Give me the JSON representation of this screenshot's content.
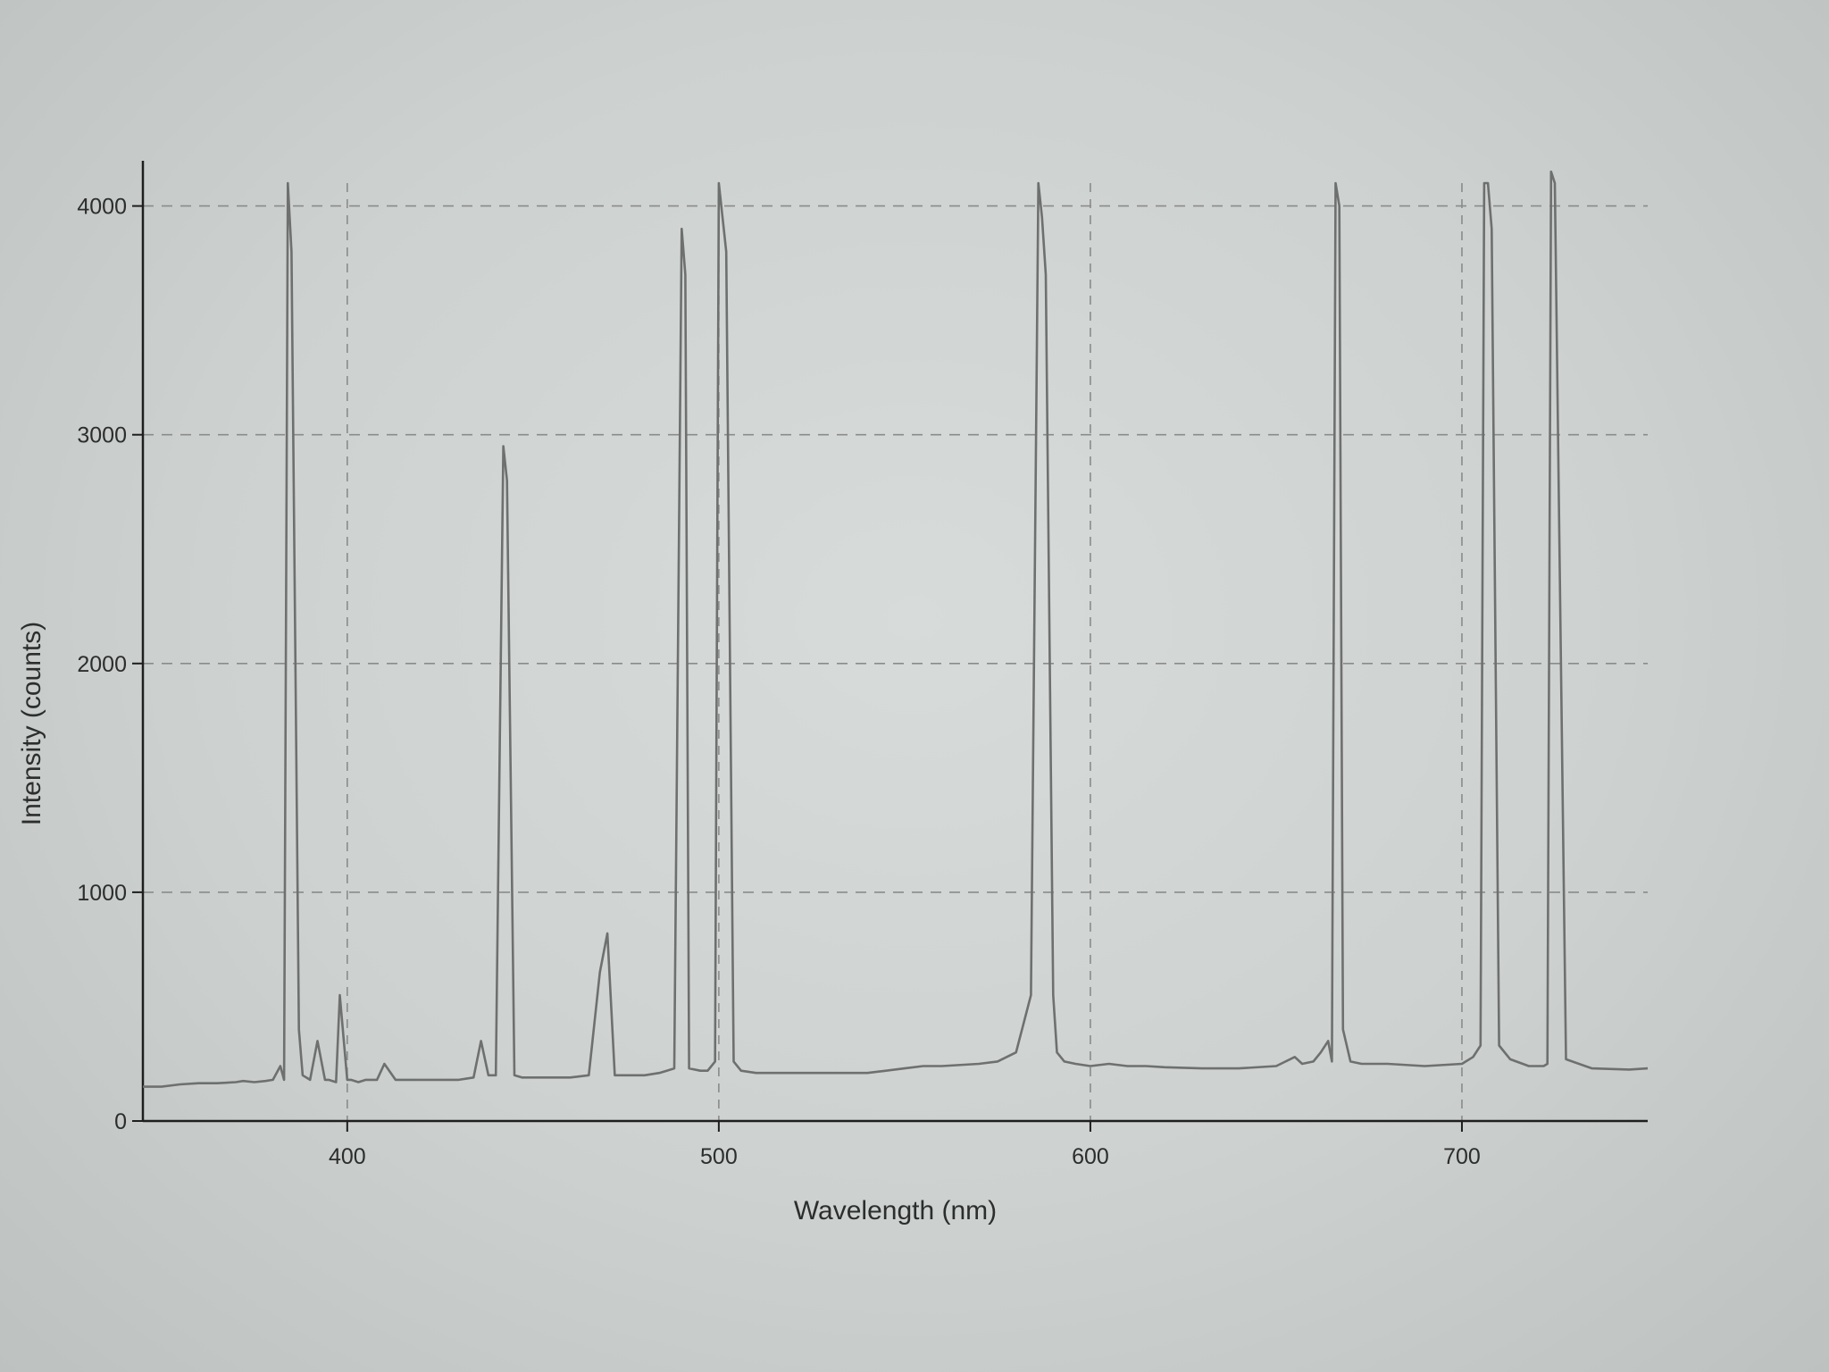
{
  "chart_data": {
    "type": "line",
    "title": "",
    "xlabel": "Wavelength (nm)",
    "ylabel": "Intensity (counts)",
    "xlim": [
      345,
      750
    ],
    "ylim": [
      0,
      4100
    ],
    "xticks": [
      400,
      500,
      600,
      700
    ],
    "yticks": [
      0,
      1000,
      2000,
      3000,
      4000
    ],
    "grid": true,
    "line_color": "#6e706f",
    "grid_color": "#8a8c8b",
    "axis_color": "#1e1e1e",
    "series": [
      {
        "x": [
          345,
          350,
          355,
          360,
          365,
          370,
          372,
          375,
          378,
          380,
          382,
          383,
          384,
          385,
          387,
          388,
          390,
          392,
          394,
          395,
          397,
          398,
          400,
          401,
          403,
          405,
          408,
          410,
          413,
          415,
          420,
          425,
          430,
          434,
          436,
          438,
          440,
          442,
          443,
          445,
          447,
          450,
          455,
          460,
          465,
          468,
          470,
          472,
          475,
          480,
          484,
          486,
          488,
          490,
          491,
          492,
          495,
          497,
          499,
          500,
          502,
          504,
          506,
          510,
          520,
          530,
          540,
          545,
          550,
          555,
          560,
          570,
          575,
          580,
          584,
          586,
          587,
          588,
          590,
          591,
          593,
          596,
          600,
          605,
          610,
          615,
          620,
          630,
          640,
          650,
          655,
          657,
          660,
          662,
          664,
          665,
          666,
          667,
          668,
          670,
          673,
          680,
          690,
          700,
          703,
          705,
          706,
          707,
          708,
          710,
          713,
          718,
          722,
          723,
          724,
          725,
          728,
          735,
          745,
          750
        ],
        "y": [
          150,
          150,
          160,
          165,
          165,
          170,
          175,
          170,
          175,
          180,
          240,
          180,
          4100,
          3800,
          400,
          200,
          180,
          350,
          180,
          180,
          170,
          550,
          180,
          180,
          170,
          180,
          180,
          250,
          180,
          180,
          180,
          180,
          180,
          190,
          350,
          200,
          200,
          2950,
          2800,
          200,
          190,
          190,
          190,
          190,
          200,
          650,
          820,
          200,
          200,
          200,
          210,
          220,
          230,
          3900,
          3700,
          230,
          220,
          220,
          260,
          4100,
          3800,
          260,
          220,
          210,
          210,
          210,
          210,
          220,
          230,
          240,
          240,
          250,
          260,
          300,
          550,
          4100,
          3950,
          3700,
          550,
          300,
          260,
          250,
          240,
          250,
          240,
          240,
          235,
          230,
          230,
          240,
          280,
          250,
          260,
          300,
          350,
          260,
          4100,
          4000,
          400,
          260,
          250,
          250,
          240,
          250,
          280,
          330,
          4100,
          4100,
          3900,
          330,
          270,
          240,
          240,
          250,
          4150,
          4100,
          270,
          230,
          225,
          230
        ]
      }
    ]
  }
}
